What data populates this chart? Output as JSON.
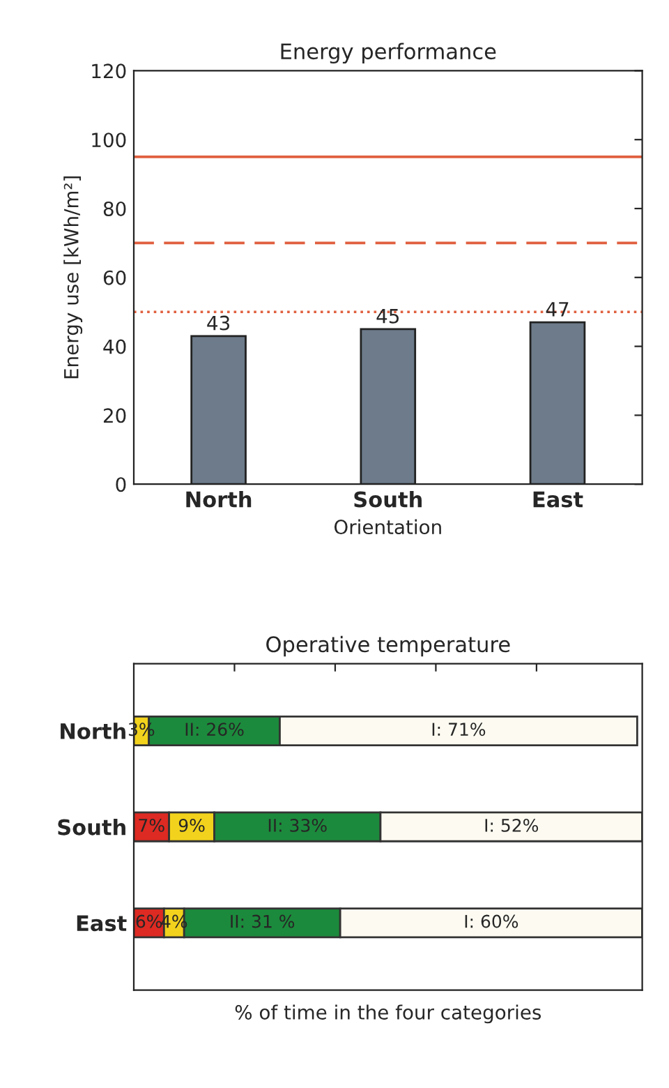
{
  "chart_data": [
    {
      "type": "bar",
      "title": "Energy performance",
      "xlabel": "Orientation",
      "ylabel": "Energy use [kWh/m²]",
      "categories": [
        "North",
        "South",
        "East"
      ],
      "values": [
        43,
        45,
        47
      ],
      "color": "#6d7b8a",
      "data_labels": true,
      "ylim": [
        0,
        120
      ],
      "yticks": [
        0,
        20,
        40,
        60,
        80,
        100,
        120
      ],
      "grid": false,
      "ref_lines": [
        {
          "axis": "y",
          "value": 95,
          "color": "#e0603f",
          "line_style": "solid"
        },
        {
          "axis": "y",
          "value": 70,
          "color": "#e0603f",
          "line_style": "dashed"
        },
        {
          "axis": "y",
          "value": 50,
          "color": "#e0603f",
          "line_style": "dotted"
        }
      ]
    },
    {
      "type": "bar",
      "orientation": "horizontal",
      "stacked": true,
      "title": "Operative temperature",
      "xlabel": "% of time in the four categories",
      "categories": [
        "North",
        "South",
        "East"
      ],
      "xlim": [
        0,
        101
      ],
      "xticks": [
        {
          "value": 20,
          "label": null
        },
        {
          "value": 40,
          "label": null
        },
        {
          "value": 60,
          "label": null
        },
        {
          "value": 80,
          "label": null
        }
      ],
      "tick_labels": "y",
      "grid": false,
      "series": [
        {
          "color": "#dd2a22",
          "values": [
            0,
            7,
            6
          ],
          "value_labels": [
            null,
            "7%",
            "6%"
          ]
        },
        {
          "color": "#f2d21c",
          "values": [
            3,
            9,
            4
          ],
          "value_labels": [
            "3%",
            "9%",
            "4%"
          ]
        },
        {
          "color": "#1c8a3c",
          "values": [
            26,
            33,
            31
          ],
          "value_labels": [
            "II: 26%",
            "II: 33%",
            "II: 31 %"
          ]
        },
        {
          "color": "#fdfbf1",
          "values": [
            71,
            52,
            60
          ],
          "value_labels": [
            "I: 71%",
            "I: 52%",
            "I: 60%"
          ]
        }
      ]
    }
  ]
}
